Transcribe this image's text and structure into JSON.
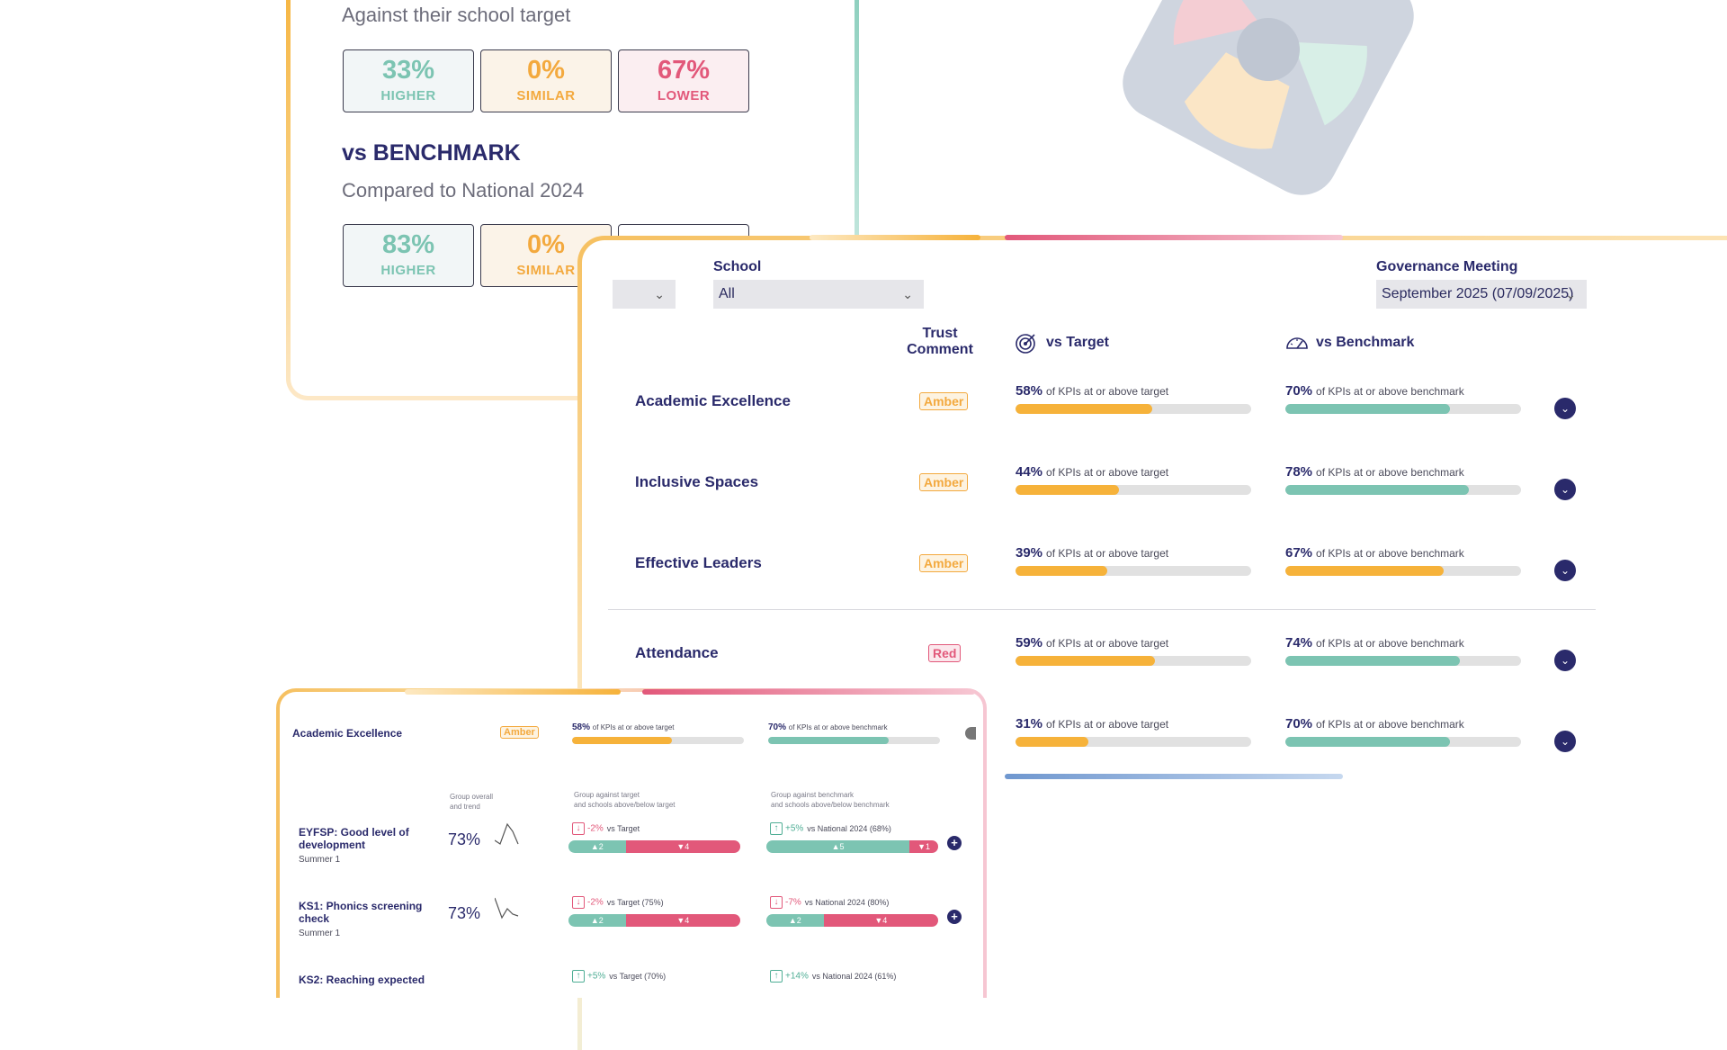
{
  "back_card": {
    "target_subtitle": "Against their school target",
    "target_stats": [
      {
        "pct": "33%",
        "label": "HIGHER"
      },
      {
        "pct": "0%",
        "label": "SIMILAR"
      },
      {
        "pct": "67%",
        "label": "LOWER"
      }
    ],
    "benchmark_title": "vs BENCHMARK",
    "benchmark_subtitle": "Compared to National 2024",
    "benchmark_stats": [
      {
        "pct": "83%",
        "label": "HIGHER"
      },
      {
        "pct": "0%",
        "label": "SIMILAR"
      }
    ]
  },
  "filters": {
    "school_label": "School",
    "school_value": "All",
    "meeting_label": "Governance Meeting",
    "meeting_value": "September 2025 (07/09/2025)"
  },
  "columns": {
    "trust_comment": "Trust Comment",
    "vs_target": "vs Target",
    "vs_benchmark": "vs Benchmark"
  },
  "rows": [
    {
      "title": "Academic Excellence",
      "rag": "Amber",
      "target_pct": "58%",
      "target_text": "of KPIs at or above target",
      "target_value": 58,
      "bench_pct": "70%",
      "bench_text": "of KPIs at or above benchmark",
      "bench_value": 70,
      "bench_color": "teal"
    },
    {
      "title": "Inclusive Spaces",
      "rag": "Amber",
      "target_pct": "44%",
      "target_text": "of KPIs at or above target",
      "target_value": 44,
      "bench_pct": "78%",
      "bench_text": "of KPIs at or above benchmark",
      "bench_value": 78,
      "bench_color": "teal"
    },
    {
      "title": "Effective Leaders",
      "rag": "Amber",
      "target_pct": "39%",
      "target_text": "of KPIs at or above target",
      "target_value": 39,
      "bench_pct": "67%",
      "bench_text": "of KPIs at or above benchmark",
      "bench_value": 67,
      "bench_color": "amber"
    },
    {
      "title": "Attendance",
      "rag": "Red",
      "target_pct": "59%",
      "target_text": "of KPIs at or above target",
      "target_value": 59,
      "bench_pct": "74%",
      "bench_text": "of KPIs at or above benchmark",
      "bench_value": 74,
      "bench_color": "teal"
    },
    {
      "title": "",
      "rag": "",
      "target_pct": "31%",
      "target_text": "of KPIs at or above target",
      "target_value": 31,
      "bench_pct": "70%",
      "bench_text": "of KPIs at or above benchmark",
      "bench_value": 70,
      "bench_color": "teal"
    }
  ],
  "detail": {
    "title": "Academic Excellence",
    "rag": "Amber",
    "target_pct": "58%",
    "target_text": "of KPIs at or above target",
    "target_value": 58,
    "bench_pct": "70%",
    "bench_text": "of KPIs at or above benchmark",
    "bench_value": 70,
    "col_overall_1": "Group overall",
    "col_overall_2": "and trend",
    "col_target_1": "Group against target",
    "col_target_2": "and schools above/below target",
    "col_bench_1": "Group against benchmark",
    "col_bench_2": "and schools above/below benchmark",
    "metrics": [
      {
        "title": "EYFSP: Good level of development",
        "term": "Summer 1",
        "pct": "73%",
        "target_delta": "-2%",
        "target_ref": "vs Target",
        "target_dir": "down",
        "target_up": "▲2",
        "target_down": "▼4",
        "target_up_n": 2,
        "target_down_n": 4,
        "bench_delta": "+5%",
        "bench_ref": "vs National 2024 (68%)",
        "bench_dir": "up",
        "bench_up": "▲5",
        "bench_down": "▼1",
        "bench_up_n": 5,
        "bench_down_n": 1
      },
      {
        "title": "KS1: Phonics screening check",
        "term": "Summer 1",
        "pct": "73%",
        "target_delta": "-2%",
        "target_ref": "vs Target (75%)",
        "target_dir": "down",
        "target_up": "▲2",
        "target_down": "▼4",
        "target_up_n": 2,
        "target_down_n": 4,
        "bench_delta": "-7%",
        "bench_ref": "vs National 2024 (80%)",
        "bench_dir": "down",
        "bench_up": "▲2",
        "bench_down": "▼4",
        "bench_up_n": 2,
        "bench_down_n": 4
      },
      {
        "title": "KS2: Reaching expected",
        "term": "",
        "pct": "",
        "target_delta": "+5%",
        "target_ref": "vs Target (70%)",
        "target_dir": "up",
        "bench_delta": "+14%",
        "bench_ref": "vs National 2024 (61%)",
        "bench_dir": "up"
      }
    ]
  },
  "colors": {
    "amber": "#f6b23a",
    "teal": "#7cc4b2",
    "red": "#e2587a",
    "navy": "#2a2a6b"
  }
}
